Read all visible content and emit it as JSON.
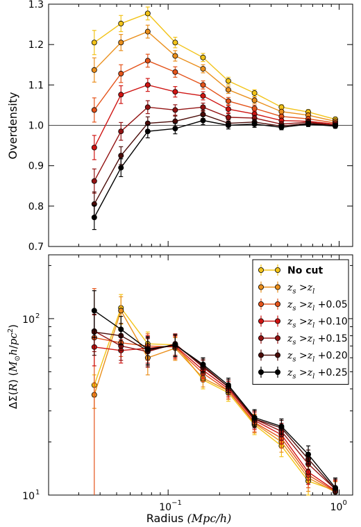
{
  "chart_data": [
    {
      "type": "line",
      "ylabel": "Overdensity",
      "xlabel": "",
      "x_scale": "log",
      "xlim": [
        0.02,
        1.2
      ],
      "ylim": [
        0.7,
        1.3
      ],
      "yticks": [
        "0.7",
        "0.8",
        "0.9",
        "1.0",
        "1.1",
        "1.2",
        "1.3"
      ],
      "reference_line": 1.0,
      "x": [
        0.037,
        0.053,
        0.076,
        0.11,
        0.16,
        0.225,
        0.32,
        0.46,
        0.66,
        0.95
      ],
      "series": [
        {
          "color": "#f2c318",
          "values": [
            1.205,
            1.252,
            1.277,
            1.205,
            1.168,
            1.11,
            1.08,
            1.045,
            1.033,
            1.015
          ],
          "errors": [
            0.03,
            0.02,
            0.016,
            0.013,
            0.01,
            0.009,
            0.008,
            0.006,
            0.006,
            0.005
          ]
        },
        {
          "color": "#ea8f1c",
          "values": [
            1.137,
            1.205,
            1.232,
            1.172,
            1.14,
            1.088,
            1.062,
            1.034,
            1.025,
            1.01
          ],
          "errors": [
            0.03,
            0.02,
            0.016,
            0.013,
            0.01,
            0.009,
            0.008,
            0.006,
            0.006,
            0.005
          ]
        },
        {
          "color": "#e4531a",
          "values": [
            1.038,
            1.128,
            1.16,
            1.132,
            1.1,
            1.06,
            1.042,
            1.022,
            1.016,
            1.006
          ],
          "errors": [
            0.03,
            0.022,
            0.016,
            0.013,
            0.01,
            0.009,
            0.008,
            0.006,
            0.006,
            0.005
          ]
        },
        {
          "color": "#cf1412",
          "values": [
            0.945,
            1.076,
            1.1,
            1.083,
            1.073,
            1.04,
            1.028,
            1.012,
            1.01,
            1.003
          ],
          "errors": [
            0.03,
            0.022,
            0.016,
            0.013,
            0.01,
            0.009,
            0.008,
            0.006,
            0.006,
            0.005
          ]
        },
        {
          "color": "#921212",
          "values": [
            0.862,
            0.985,
            1.045,
            1.038,
            1.045,
            1.02,
            1.018,
            1.003,
            1.008,
            1.0
          ],
          "errors": [
            0.03,
            0.022,
            0.016,
            0.013,
            0.01,
            0.009,
            0.008,
            0.006,
            0.006,
            0.005
          ]
        },
        {
          "color": "#4a0b08",
          "values": [
            0.805,
            0.925,
            1.005,
            1.01,
            1.027,
            1.005,
            1.008,
            0.998,
            1.005,
            1.0
          ],
          "errors": [
            0.03,
            0.022,
            0.016,
            0.013,
            0.01,
            0.009,
            0.008,
            0.006,
            0.006,
            0.005
          ]
        },
        {
          "color": "#000000",
          "values": [
            0.772,
            0.895,
            0.985,
            0.992,
            1.012,
            1.0,
            1.003,
            0.995,
            1.003,
            0.998
          ],
          "errors": [
            0.03,
            0.022,
            0.016,
            0.013,
            0.01,
            0.009,
            0.008,
            0.006,
            0.006,
            0.005
          ]
        }
      ]
    },
    {
      "type": "line",
      "ylabel_parts": [
        "ΔΣ(",
        "R",
        ") (",
        "M",
        "⊙",
        "h",
        "/",
        "pc",
        "2",
        ")"
      ],
      "xlabel": "Radius",
      "xlabel_math": "(Mpc/h)",
      "x_scale": "log",
      "y_scale": "log",
      "xlim": [
        0.02,
        1.2
      ],
      "ylim": [
        10,
        230
      ],
      "xticks": [
        {
          "value": 0.1,
          "base": "10",
          "exp": "−1"
        },
        {
          "value": 1,
          "base": "10",
          "exp": "0"
        }
      ],
      "yticks": [
        {
          "value": 10,
          "base": "10",
          "exp": "1"
        },
        {
          "value": 100,
          "base": "10",
          "exp": "2"
        }
      ],
      "x": [
        0.037,
        0.053,
        0.076,
        0.11,
        0.16,
        0.225,
        0.32,
        0.46,
        0.66,
        0.95
      ],
      "legend_position": "upper right",
      "series": [
        {
          "name": "No cut",
          "color": "#f2c318",
          "values": [
            42,
            115,
            72,
            71,
            45,
            38,
            25,
            19,
            12,
            10.6
          ],
          "errors": [
            6,
            22,
            12,
            10,
            5,
            4,
            3,
            2.5,
            2,
            1.5
          ]
        },
        {
          "name_parts": [
            "z",
            "s",
            " >",
            "z",
            "l",
            ""
          ],
          "color": "#ea8f1c",
          "values": [
            37,
            111,
            60,
            68,
            46,
            39,
            25.5,
            20,
            12.5,
            10.4
          ],
          "errors": [
            6,
            22,
            12,
            10,
            5,
            4,
            3,
            2.5,
            2,
            1.5
          ]
        },
        {
          "name_parts": [
            "z",
            "s",
            " >",
            "z",
            "l",
            " +0.05"
          ],
          "color": "#e4531a",
          "values": [
            78,
            73,
            70,
            69,
            49,
            39,
            25.8,
            21,
            13,
            10.5
          ],
          "errors": [
            70,
            12,
            12,
            10,
            5,
            4,
            3,
            2.5,
            2,
            1.5
          ]
        },
        {
          "name_parts": [
            "z",
            "s",
            " >",
            "z",
            "l",
            " +0.10"
          ],
          "color": "#cf1412",
          "values": [
            69,
            66,
            68,
            70,
            51,
            40,
            26.5,
            22,
            13.5,
            10.6
          ],
          "errors": [
            15,
            10,
            12,
            10,
            5,
            4,
            3,
            2.5,
            2,
            1.5
          ]
        },
        {
          "name_parts": [
            "z",
            "s",
            " >",
            "z",
            "l",
            " +0.15"
          ],
          "color": "#921212",
          "values": [
            85,
            70,
            65,
            72,
            53,
            41,
            27,
            23,
            15,
            10.8
          ],
          "errors": [
            20,
            12,
            12,
            10,
            5,
            4,
            3,
            2.5,
            2,
            1.5
          ]
        },
        {
          "name_parts": [
            "z",
            "s",
            " >",
            "z",
            "l",
            " +0.20"
          ],
          "color": "#4a0b08",
          "values": [
            84,
            80,
            66,
            71,
            54,
            41,
            27,
            24,
            16,
            10.8
          ],
          "errors": [
            22,
            14,
            12,
            10,
            5,
            4,
            3,
            2.5,
            2,
            1.5
          ]
        },
        {
          "name_parts": [
            "z",
            "s",
            " >",
            "z",
            "l",
            " +0.25"
          ],
          "color": "#000000",
          "values": [
            111,
            87,
            67,
            71,
            55,
            42,
            27.5,
            24.5,
            17,
            11
          ],
          "errors": [
            33,
            16,
            12,
            10,
            5,
            4,
            3,
            2.5,
            2,
            1.5
          ]
        }
      ]
    }
  ]
}
